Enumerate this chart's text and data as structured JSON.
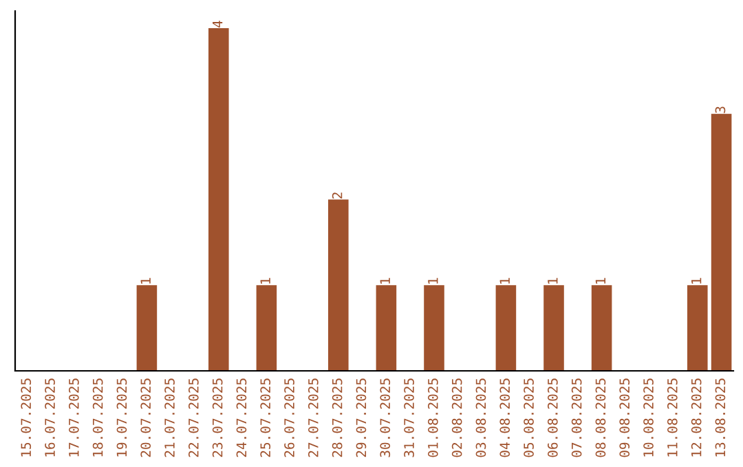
{
  "chart_data": {
    "type": "bar",
    "categories": [
      "15.07.2025",
      "16.07.2025",
      "17.07.2025",
      "18.07.2025",
      "19.07.2025",
      "20.07.2025",
      "21.07.2025",
      "22.07.2025",
      "23.07.2025",
      "24.07.2025",
      "25.07.2025",
      "26.07.2025",
      "27.07.2025",
      "28.07.2025",
      "29.07.2025",
      "30.07.2025",
      "31.07.2025",
      "01.08.2025",
      "02.08.2025",
      "03.08.2025",
      "04.08.2025",
      "05.08.2025",
      "06.08.2025",
      "07.08.2025",
      "08.08.2025",
      "09.08.2025",
      "10.08.2025",
      "11.08.2025",
      "12.08.2025",
      "13.08.2025"
    ],
    "values": [
      0,
      0,
      0,
      0,
      0,
      1,
      0,
      0,
      4,
      0,
      1,
      0,
      0,
      2,
      0,
      1,
      0,
      1,
      0,
      0,
      1,
      0,
      1,
      0,
      1,
      0,
      0,
      0,
      1,
      3
    ],
    "value_labels": [
      null,
      null,
      null,
      null,
      null,
      "1",
      null,
      null,
      "4",
      null,
      "1",
      null,
      null,
      "2",
      null,
      "1",
      null,
      "1",
      null,
      null,
      "1",
      null,
      "1",
      null,
      "1",
      null,
      null,
      null,
      "1",
      "3"
    ],
    "color": "#a0522d",
    "tick_labels": "x",
    "grid": false,
    "legend": false
  }
}
